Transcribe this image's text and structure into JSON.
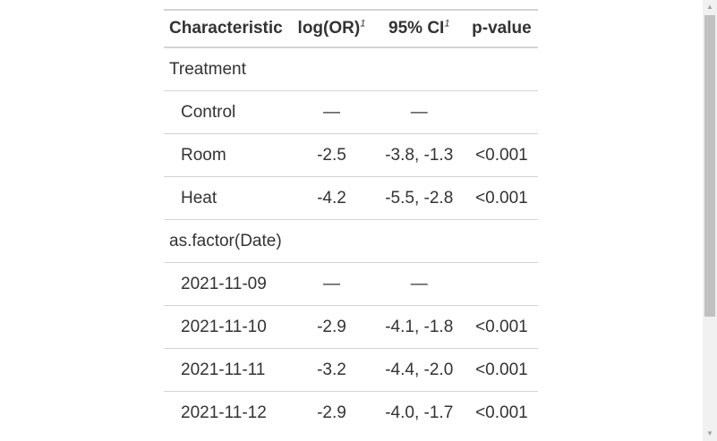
{
  "table": {
    "headers": {
      "characteristic": "Characteristic",
      "log_or": "log(OR)",
      "log_or_footnote": "1",
      "ci": "95% CI",
      "ci_footnote": "1",
      "p_value": "p-value"
    },
    "rows": [
      {
        "label": "Treatment",
        "log_or": "",
        "ci": "",
        "p": ""
      },
      {
        "label": "Control",
        "log_or": "—",
        "ci": "—",
        "p": ""
      },
      {
        "label": "Room",
        "log_or": "-2.5",
        "ci": "-3.8, -1.3",
        "p": "<0.001"
      },
      {
        "label": "Heat",
        "log_or": "-4.2",
        "ci": "-5.5, -2.8",
        "p": "<0.001"
      },
      {
        "label": "as.factor(Date)",
        "log_or": "",
        "ci": "",
        "p": ""
      },
      {
        "label": "2021-11-09",
        "log_or": "—",
        "ci": "—",
        "p": ""
      },
      {
        "label": "2021-11-10",
        "log_or": "-2.9",
        "ci": "-4.1, -1.8",
        "p": "<0.001"
      },
      {
        "label": "2021-11-11",
        "log_or": "-3.2",
        "ci": "-4.4, -2.0",
        "p": "<0.001"
      },
      {
        "label": "2021-11-12",
        "log_or": "-2.9",
        "ci": "-4.0, -1.7",
        "p": "<0.001"
      }
    ]
  },
  "scrollbar": {
    "up_icon": "scroll-up-arrow-icon",
    "down_icon": "scroll-down-arrow-icon"
  }
}
